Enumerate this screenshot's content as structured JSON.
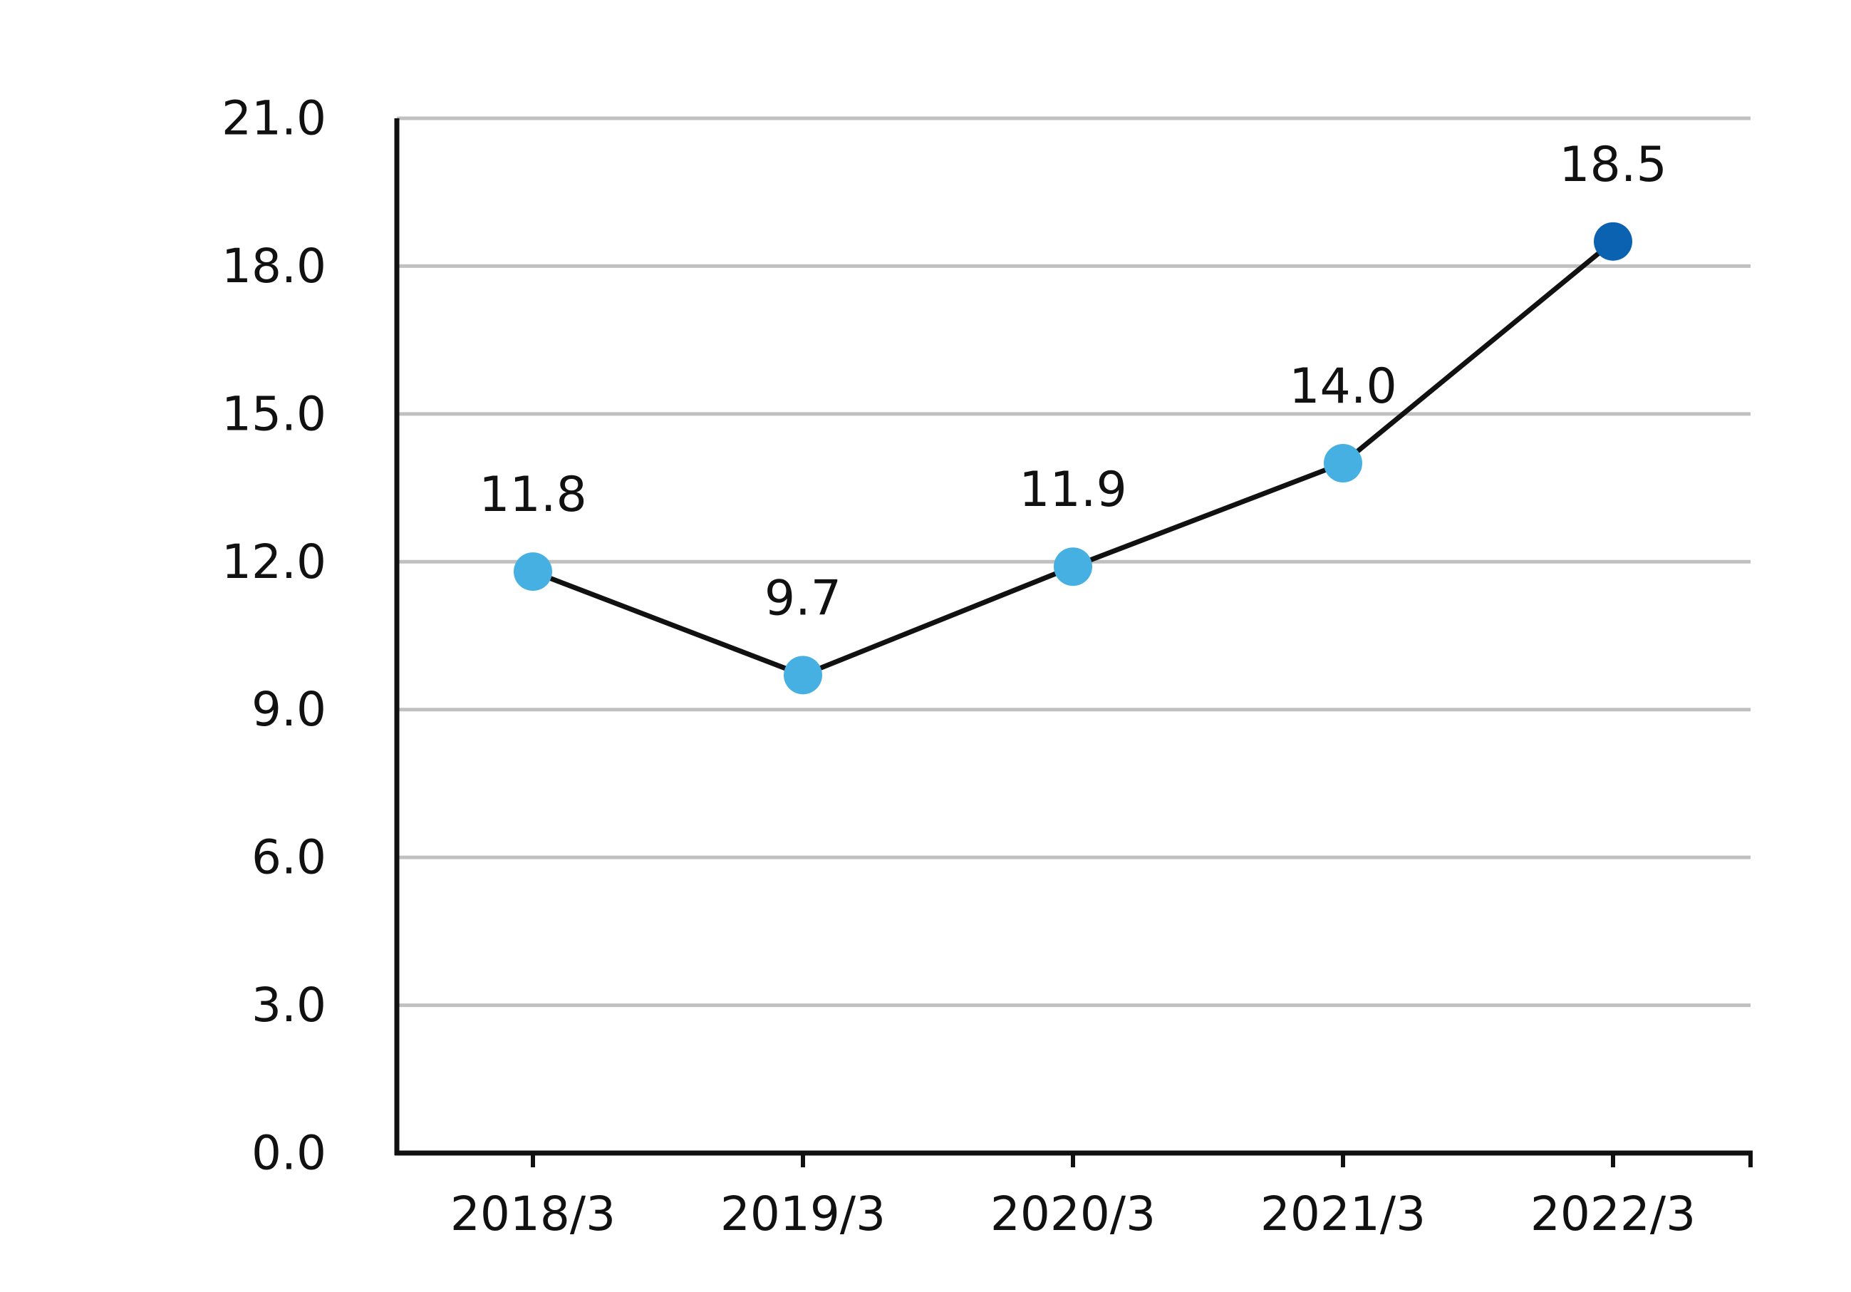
{
  "chart_data": {
    "type": "line",
    "title": "",
    "xlabel": "",
    "ylabel": "",
    "categories": [
      "2018/3",
      "2019/3",
      "2020/3",
      "2021/3",
      "2022/3"
    ],
    "series": [
      {
        "values": [
          11.8,
          9.7,
          11.9,
          14.0,
          18.5
        ],
        "labels": [
          "11.8",
          "9.7",
          "11.9",
          "14.0",
          "18.5"
        ],
        "line_color": "#111111",
        "marker_color": "#45b0e1",
        "highlight_marker_color": "#0a62b0",
        "highlight_index": 4
      }
    ],
    "ylim": [
      0,
      21
    ],
    "yticks": [
      0,
      3,
      6,
      9,
      12,
      15,
      18,
      21
    ],
    "ytick_labels": [
      "0.0",
      "3.0",
      "6.0",
      "9.0",
      "12.0",
      "15.0",
      "18.0",
      "21.0"
    ],
    "grid": true,
    "grid_color": "#c0c0c0",
    "axis_color": "#111111",
    "legend": "none"
  }
}
